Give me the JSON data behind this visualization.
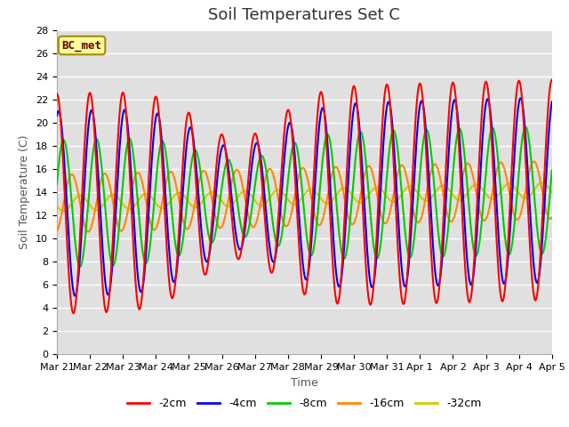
{
  "title": "Soil Temperatures Set C",
  "xlabel": "Time",
  "ylabel": "Soil Temperature (C)",
  "ylim": [
    0,
    28
  ],
  "yticks": [
    0,
    2,
    4,
    6,
    8,
    10,
    12,
    14,
    16,
    18,
    20,
    22,
    24,
    26,
    28
  ],
  "x_labels": [
    "Mar 21",
    "Mar 22",
    "Mar 23",
    "Mar 24",
    "Mar 25",
    "Mar 26",
    "Mar 27",
    "Mar 28",
    "Mar 29",
    "Mar 30",
    "Mar 31",
    "Apr 1",
    "Apr 2",
    "Apr 3",
    "Apr 4",
    "Apr 5"
  ],
  "colors": {
    "-2cm": "#ff0000",
    "-4cm": "#0000ff",
    "-8cm": "#00cc00",
    "-16cm": "#ff8800",
    "-32cm": "#cccc00"
  },
  "legend_label": "BC_met",
  "legend_box_facecolor": "#ffff99",
  "legend_box_edgecolor": "#aa8800",
  "legend_text_color": "#660000",
  "bg_color": "#e0e0e0",
  "grid_color": "#ffffff",
  "title_fontsize": 13,
  "axis_fontsize": 9,
  "tick_fontsize": 8,
  "linewidth": 1.5
}
